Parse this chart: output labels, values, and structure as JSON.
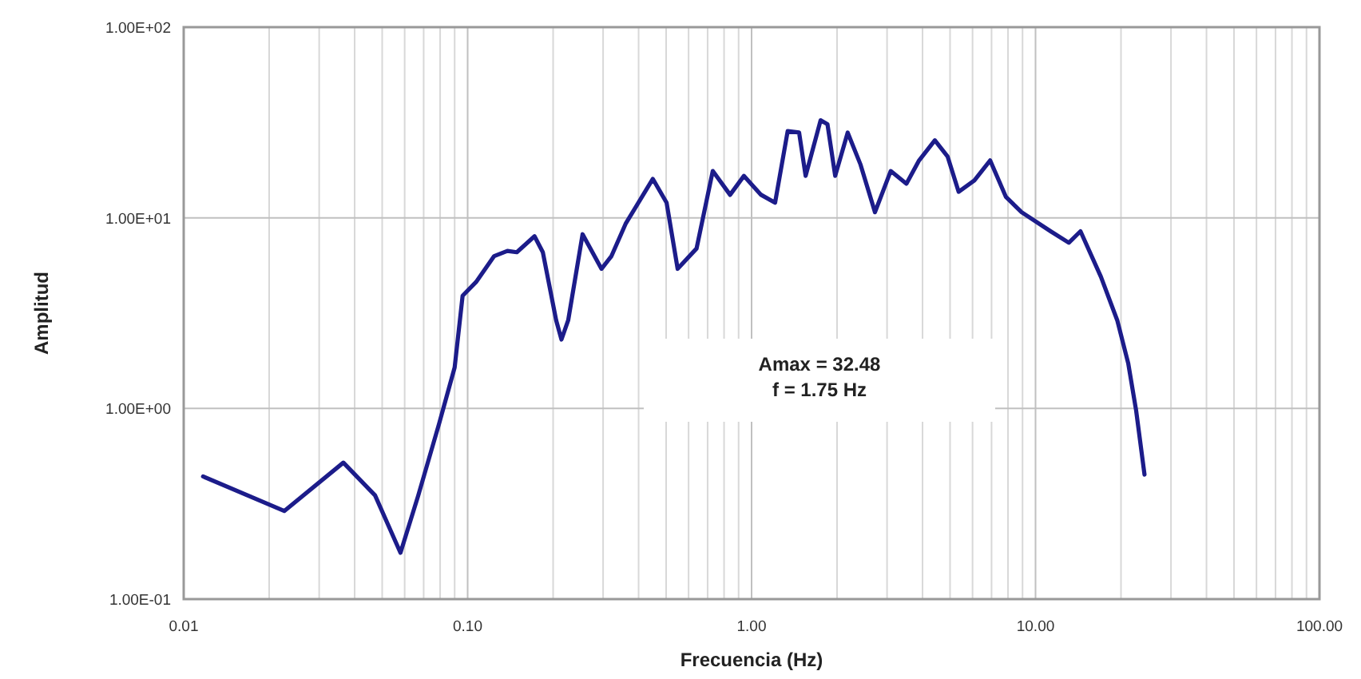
{
  "chart_data": {
    "type": "line",
    "xlabel": "Frecuencia (Hz)",
    "ylabel": "Amplitud",
    "log": "xy",
    "grid": true,
    "line_style": "solid",
    "xlim": [
      0.01,
      100
    ],
    "ylim": [
      0.1,
      100
    ],
    "xticks": [
      {
        "value": 0.01,
        "label": "0.01"
      },
      {
        "value": 0.02,
        "label": null
      },
      {
        "value": 0.03,
        "label": null
      },
      {
        "value": 0.04,
        "label": null
      },
      {
        "value": 0.05,
        "label": null
      },
      {
        "value": 0.06,
        "label": null
      },
      {
        "value": 0.07,
        "label": null
      },
      {
        "value": 0.08,
        "label": null
      },
      {
        "value": 0.09,
        "label": null
      },
      {
        "value": 0.1,
        "label": "0.10"
      },
      {
        "value": 0.2,
        "label": null
      },
      {
        "value": 0.3,
        "label": null
      },
      {
        "value": 0.4,
        "label": null
      },
      {
        "value": 0.5,
        "label": null
      },
      {
        "value": 0.6,
        "label": null
      },
      {
        "value": 0.7,
        "label": null
      },
      {
        "value": 0.8,
        "label": null
      },
      {
        "value": 0.9,
        "label": null
      },
      {
        "value": 1,
        "label": "1.00"
      },
      {
        "value": 2,
        "label": null
      },
      {
        "value": 3,
        "label": null
      },
      {
        "value": 4,
        "label": null
      },
      {
        "value": 5,
        "label": null
      },
      {
        "value": 6,
        "label": null
      },
      {
        "value": 7,
        "label": null
      },
      {
        "value": 8,
        "label": null
      },
      {
        "value": 9,
        "label": null
      },
      {
        "value": 10,
        "label": "10.00"
      },
      {
        "value": 20,
        "label": null
      },
      {
        "value": 30,
        "label": null
      },
      {
        "value": 40,
        "label": null
      },
      {
        "value": 50,
        "label": null
      },
      {
        "value": 60,
        "label": null
      },
      {
        "value": 70,
        "label": null
      },
      {
        "value": 80,
        "label": null
      },
      {
        "value": 90,
        "label": null
      },
      {
        "value": 100,
        "label": "100.00"
      }
    ],
    "yticks": [
      {
        "value": 0.1,
        "label": "1.00E-01"
      },
      {
        "value": 1,
        "label": "1.00E+00"
      },
      {
        "value": 10,
        "label": "1.00E+01"
      },
      {
        "value": 100,
        "label": "1.00E+02"
      }
    ],
    "annotations": [
      "Amax = 32.48",
      "f = 1.75 Hz"
    ],
    "series": [
      {
        "color": "#1c1c8a",
        "x": [
          0.0117,
          0.0226,
          0.0365,
          0.0472,
          0.058,
          0.067,
          0.0793,
          0.09,
          0.096,
          0.107,
          0.124,
          0.138,
          0.149,
          0.172,
          0.184,
          0.205,
          0.214,
          0.226,
          0.254,
          0.296,
          0.321,
          0.36,
          0.449,
          0.502,
          0.549,
          0.64,
          0.73,
          0.84,
          0.94,
          1.08,
          1.21,
          1.34,
          1.47,
          1.55,
          1.75,
          1.85,
          1.97,
          2.18,
          2.42,
          2.72,
          3.09,
          3.51,
          3.89,
          4.42,
          4.9,
          5.36,
          6.09,
          6.92,
          7.86,
          8.93,
          11.3,
          13.1,
          14.4,
          17.0,
          19.4,
          21.2,
          22.6,
          24.2
        ],
        "values": [
          0.44,
          0.29,
          0.52,
          0.35,
          0.175,
          0.35,
          0.83,
          1.64,
          3.9,
          4.6,
          6.3,
          6.7,
          6.6,
          8.0,
          6.6,
          2.9,
          2.3,
          2.9,
          8.2,
          5.4,
          6.3,
          9.3,
          16,
          12,
          5.4,
          6.9,
          17.6,
          13.2,
          16.6,
          13.2,
          12,
          28.5,
          28,
          16.6,
          32.48,
          31,
          16.6,
          28,
          19,
          10.7,
          17.6,
          15.1,
          20,
          25.5,
          21,
          13.7,
          15.7,
          20,
          12.9,
          10.7,
          8.5,
          7.4,
          8.5,
          4.9,
          2.9,
          1.73,
          0.98,
          0.45
        ]
      }
    ]
  }
}
